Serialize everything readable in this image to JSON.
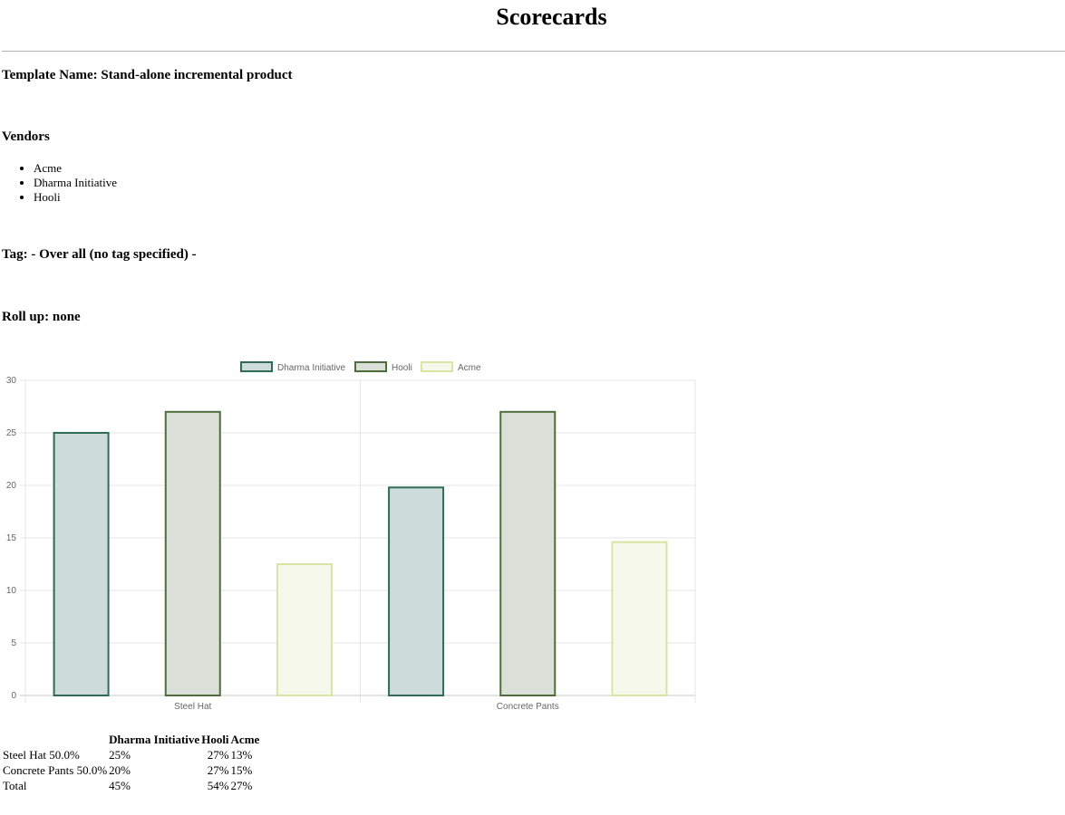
{
  "page": {
    "title": "Scorecards",
    "template_heading": "Template Name: Stand-alone incremental product",
    "vendors_heading": "Vendors",
    "vendors": [
      "Acme",
      "Dharma Initiative",
      "Hooli"
    ],
    "tag_heading": "Tag: - Over all (no tag specified) -",
    "rollup_heading": "Roll up: none"
  },
  "chart_data": {
    "type": "bar",
    "categories": [
      "Steel Hat",
      "Concrete Pants"
    ],
    "series": [
      {
        "name": "Dharma Initiative",
        "values": [
          25,
          19.8
        ],
        "color": "#2f6b57",
        "fill": "#cddcd8"
      },
      {
        "name": "Hooli",
        "values": [
          27,
          27
        ],
        "color": "#4d6e3c",
        "fill": "#dae0d7"
      },
      {
        "name": "Acme",
        "values": [
          12.5,
          14.6
        ],
        "color": "#d8e5a3",
        "fill": "#f5f8ea"
      }
    ],
    "ylim": [
      0,
      30
    ],
    "yticks": [
      0,
      5,
      10,
      15,
      20,
      25,
      30
    ],
    "grid": true,
    "legend": "top"
  },
  "table": {
    "headers": [
      "",
      "Dharma Initiative",
      "Hooli",
      "Acme"
    ],
    "rows": [
      [
        "Steel Hat 50.0%",
        "25%",
        "27%",
        "13%"
      ],
      [
        "Concrete Pants 50.0%",
        "20%",
        "27%",
        "15%"
      ],
      [
        "Total",
        "45%",
        "54%",
        "27%"
      ]
    ]
  }
}
